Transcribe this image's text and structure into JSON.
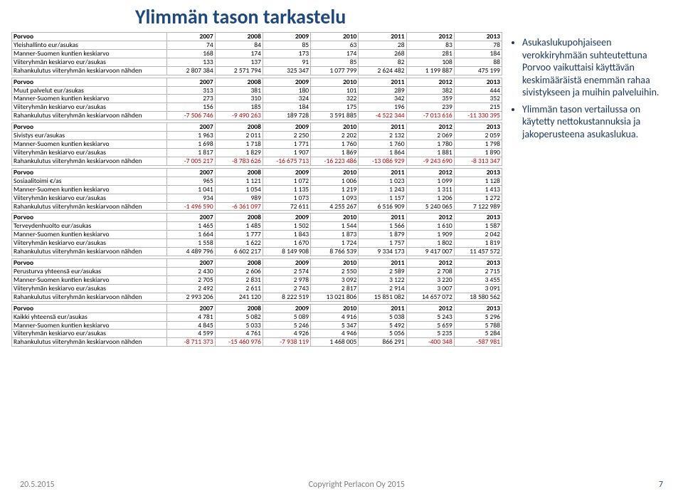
{
  "title": "Ylimmän tason tarkastelu",
  "footer": {
    "date": "20.5.2015",
    "copyright": "Copyright Perlacon Oy 2015",
    "page": "7"
  },
  "bullets": [
    "Asukaslukupohjaiseen verokkiryhmään suhteutettuna Porvoo vaikuttaisi käyttävän keskimääräistä enemmän rahaa sivistykseen ja muihin palveluihin.",
    "Ylimmän tason vertailussa on käytetty nettokustannuksia ja jakoperusteena asukaslukua."
  ],
  "years": [
    "2007",
    "2008",
    "2009",
    "2010",
    "2011",
    "2012",
    "2013"
  ],
  "sections": [
    {
      "header": "Porvoo",
      "rows": [
        {
          "label": "Yleishallinto eur/asukas",
          "v": [
            "74",
            "84",
            "85",
            "63",
            "28",
            "83",
            "78"
          ]
        },
        {
          "label": "Manner-Suomen kuntien keskiarvo",
          "v": [
            "168",
            "174",
            "173",
            "174",
            "268",
            "281",
            "184"
          ]
        },
        {
          "label": "Viiteryhmän keskiarvo eur/asukas",
          "v": [
            "133",
            "137",
            "91",
            "85",
            "82",
            "108",
            "88"
          ]
        },
        {
          "label": "Rahankulutus viiteryhmän keskiarvoon nähden",
          "v": [
            "2 807 384",
            "2 571 794",
            "325 347",
            "1 077 799",
            "2 624 482",
            "1 199 887",
            "475 199"
          ]
        }
      ]
    },
    {
      "header": "Porvoo",
      "rows": [
        {
          "label": "Muut palvelut eur/asukas",
          "v": [
            "313",
            "381",
            "180",
            "101",
            "289",
            "382",
            "444"
          ]
        },
        {
          "label": "Manner-Suomen kuntien keskiarvo",
          "v": [
            "273",
            "310",
            "324",
            "322",
            "342",
            "359",
            "352"
          ]
        },
        {
          "label": "Viiteryhmän keskiarvo eur/asukas",
          "v": [
            "156",
            "185",
            "184",
            "175",
            "196",
            "239",
            "215"
          ]
        },
        {
          "label": "Rahankulutus viiteryhmän keskiarvoon nähden",
          "v": [
            "-7 506 746",
            "-9 490 263",
            "189 728",
            "3 591 885",
            "-4 522 344",
            "-7 013 616",
            "-11 330 395"
          ]
        }
      ]
    },
    {
      "header": "Porvoo",
      "rows": [
        {
          "label": "Sivistys eur/asukas",
          "v": [
            "1 963",
            "2 011",
            "2 250",
            "2 202",
            "2 132",
            "2 069",
            "2 059"
          ]
        },
        {
          "label": "Manner-Suomen kuntien keskiarvo",
          "v": [
            "1 698",
            "1 718",
            "1 771",
            "1 760",
            "1 760",
            "1 780",
            "1 798"
          ]
        },
        {
          "label": "Viiteryhmän keskiarvo eur/asukas",
          "v": [
            "1 817",
            "1 829",
            "1 907",
            "1 869",
            "1 864",
            "1 881",
            "1 890"
          ]
        },
        {
          "label": "Rahankulutus viiteryhmän keskiarvoon nähden",
          "v": [
            "-7 005 217",
            "-8 783 626",
            "-16 675 713",
            "-16 223 486",
            "-13 086 929",
            "-9 243 690",
            "-8 313 347"
          ]
        }
      ]
    },
    {
      "header": "Porvoo",
      "rows": [
        {
          "label": "Sosiaalitoimi €/as",
          "v": [
            "965",
            "1 121",
            "1 072",
            "1 006",
            "1 023",
            "1 099",
            "1 128"
          ]
        },
        {
          "label": "Manner-Suomen kuntien keskiarvo",
          "v": [
            "1 041",
            "1 054",
            "1 135",
            "1 219",
            "1 243",
            "1 311",
            "1 413"
          ]
        },
        {
          "label": "Viiteryhmän keskiarvo eur/asukas",
          "v": [
            "934",
            "989",
            "1 073",
            "1 093",
            "1 157",
            "1 206",
            "1 272"
          ]
        },
        {
          "label": "Rahankulutus viiteryhmän keskiarvoon nähden",
          "v": [
            "-1 496 590",
            "-6 361 097",
            "72 611",
            "4 255 267",
            "6 516 909",
            "5 240 065",
            "7 122 989"
          ]
        }
      ]
    },
    {
      "header": "Porvoo",
      "rows": [
        {
          "label": "Terveydenhuolto eur/asukas",
          "v": [
            "1 465",
            "1 485",
            "1 502",
            "1 544",
            "1 566",
            "1 610",
            "1 587"
          ]
        },
        {
          "label": "Manner-Suomen kuntien keskiarvo",
          "v": [
            "1 664",
            "1 777",
            "1 843",
            "1 873",
            "1 879",
            "1 909",
            "2 042"
          ]
        },
        {
          "label": "Viiteryhmän keskiarvo eur/asukas",
          "v": [
            "1 558",
            "1 622",
            "1 670",
            "1 724",
            "1 757",
            "1 802",
            "1 819"
          ]
        },
        {
          "label": "Rahankulutus viiteryhmän keskiarvoon nähden",
          "v": [
            "4 489 796",
            "6 602 217",
            "8 149 908",
            "8 766 539",
            "9 334 173",
            "9 417 007",
            "11 457 572"
          ]
        }
      ]
    },
    {
      "header": "Porvoo",
      "rows": [
        {
          "label": "Perusturva yhteensä eur/asukas",
          "v": [
            "2 430",
            "2 606",
            "2 574",
            "2 550",
            "2 589",
            "2 708",
            "2 715"
          ]
        },
        {
          "label": "Manner-Suomen kuntien keskiarvo",
          "v": [
            "2 705",
            "2 831",
            "2 978",
            "3 092",
            "3 122",
            "3 220",
            "3 455"
          ]
        },
        {
          "label": "Viiteryhmän keskiarvo eur/asukas",
          "v": [
            "2 492",
            "2 611",
            "2 743",
            "2 817",
            "2 914",
            "3 007",
            "3 091"
          ]
        },
        {
          "label": "Rahankulutus viiteryhmän keskiarvoon nähden",
          "v": [
            "2 993 206",
            "241 120",
            "8 222 519",
            "13 021 806",
            "15 851 082",
            "14 657 072",
            "18 580 562"
          ]
        }
      ]
    },
    {
      "header": "Porvoo",
      "rows": [
        {
          "label": "Kaikki yhteensä eur/asukas",
          "v": [
            "4 781",
            "5 082",
            "5 089",
            "4 916",
            "5 038",
            "5 243",
            "5 296"
          ]
        },
        {
          "label": "Manner-Suomen kuntien keskiarvo",
          "v": [
            "4 845",
            "5 033",
            "5 246",
            "5 347",
            "5 492",
            "5 659",
            "5 788"
          ]
        },
        {
          "label": "Viiteryhmän keskiarvo eur/asukas",
          "v": [
            "4 599",
            "4 761",
            "4 926",
            "4 946",
            "5 056",
            "5 235",
            "5 284"
          ]
        },
        {
          "label": "Rahankulutus viiteryhmän keskiarvoon nähden",
          "v": [
            "-8 711 373",
            "-15 460 976",
            "-7 938 119",
            "1 468 005",
            "866 291",
            "-400 348",
            "-587 981"
          ]
        }
      ]
    }
  ]
}
